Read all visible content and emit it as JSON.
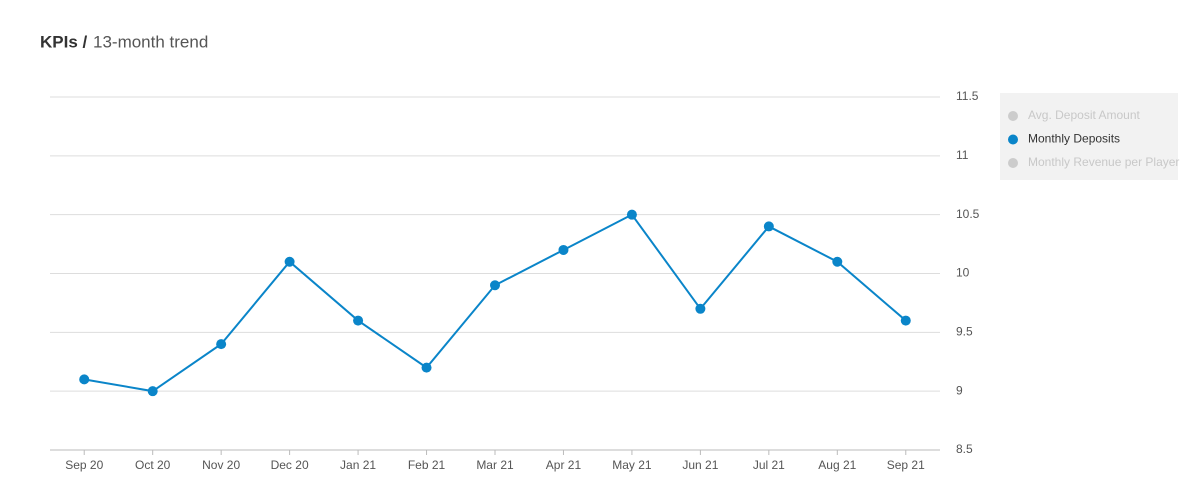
{
  "chart_data": {
    "type": "line",
    "title": "KPIs /",
    "subtitle": "13-month trend",
    "categories": [
      "Sep 20",
      "Oct 20",
      "Nov 20",
      "Dec 20",
      "Jan 21",
      "Feb 21",
      "Mar 21",
      "Apr 21",
      "May 21",
      "Jun 21",
      "Jul 21",
      "Aug 21",
      "Sep 21"
    ],
    "series": [
      {
        "name": "Avg. Deposit Amount",
        "color": "#cccccc",
        "visible": false
      },
      {
        "name": "Monthly Deposits",
        "color": "#0a85c9",
        "visible": true,
        "values": [
          9.1,
          9.0,
          9.4,
          10.1,
          9.6,
          9.2,
          9.9,
          10.2,
          10.5,
          9.7,
          10.4,
          10.1,
          9.6
        ]
      },
      {
        "name": "Monthly Revenue per Player",
        "color": "#cccccc",
        "visible": false
      }
    ],
    "ylim": [
      8.5,
      11.5
    ],
    "yticks": [
      8.5,
      9,
      9.5,
      10,
      10.5,
      11,
      11.5
    ],
    "grid": true,
    "legend": "top-right"
  }
}
